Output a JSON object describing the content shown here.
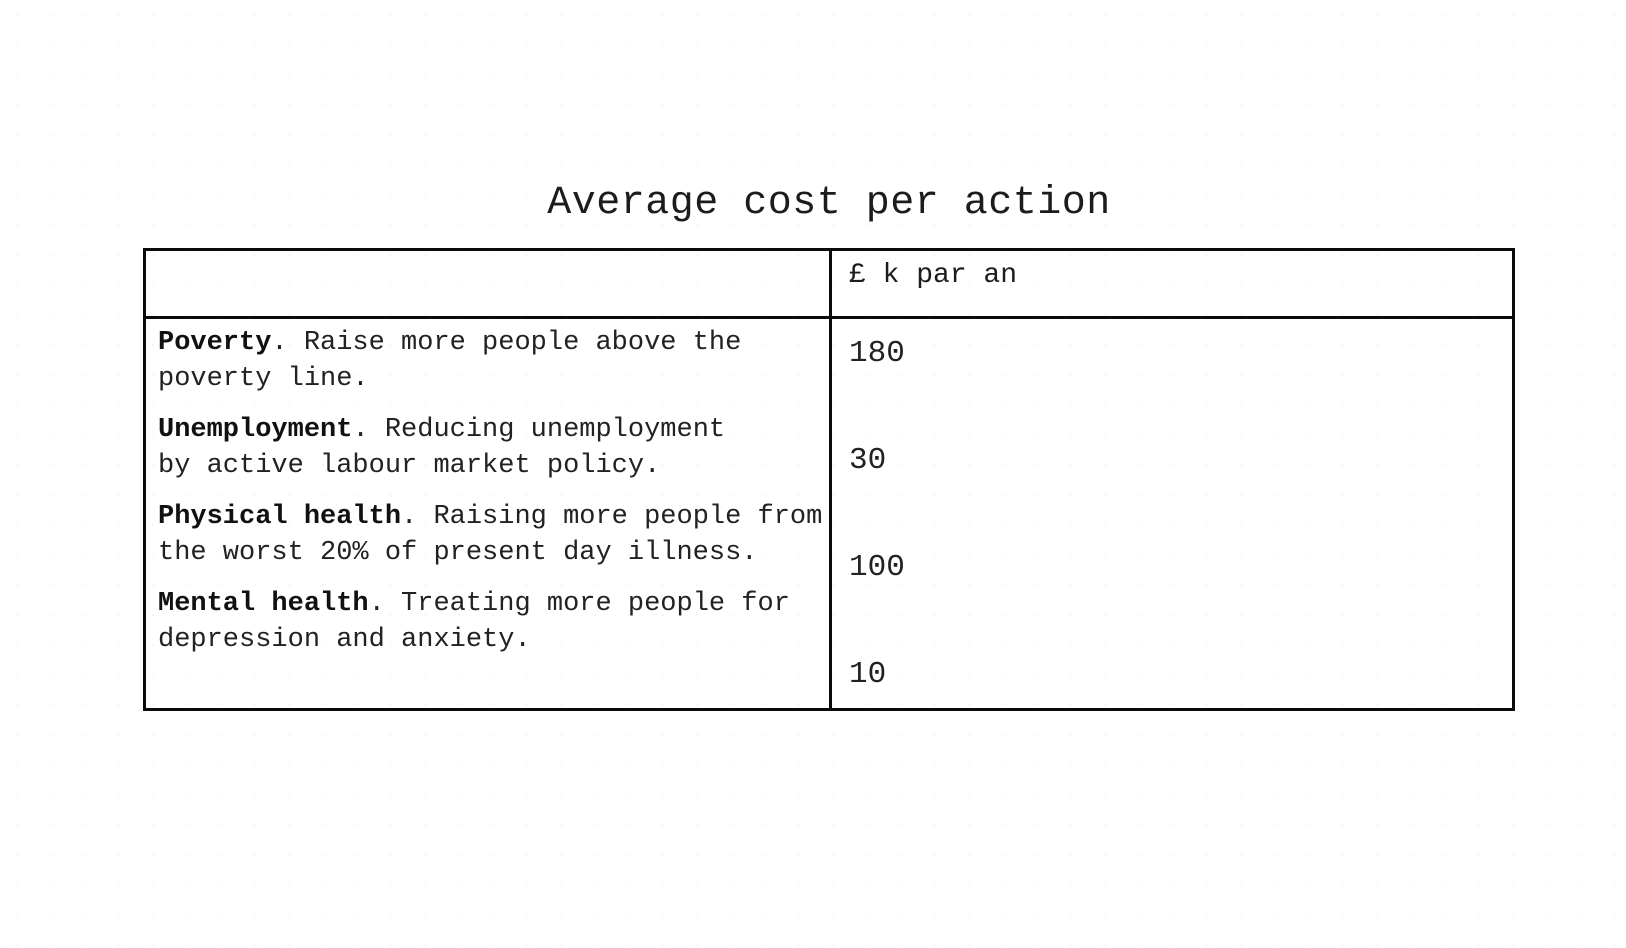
{
  "page": {
    "title": "Average cost per action"
  },
  "table": {
    "unit_header": "£ k par an",
    "rows": [
      {
        "term": "Poverty",
        "desc_line1": ". Raise more people above the",
        "desc_line2": "poverty line.",
        "value": "180"
      },
      {
        "term": "Unemployment",
        "desc_line1": ". Reducing unemployment",
        "desc_line2": "by active labour market policy.",
        "value": "30"
      },
      {
        "term": "Physical health",
        "desc_line1": ". Raising more people from",
        "desc_line2": "the worst 20% of present day illness.",
        "value": "100"
      },
      {
        "term": "Mental health",
        "desc_line1": ". Treating more people for",
        "desc_line2": "depression and anxiety.",
        "value": "10"
      }
    ]
  },
  "chart_data": {
    "type": "table",
    "title": "Average cost per action",
    "columns": [
      "",
      "£ k par an"
    ],
    "rows": [
      [
        "Poverty. Raise more people above the poverty line.",
        180
      ],
      [
        "Unemployment. Reducing unemployment by active labour market policy.",
        30
      ],
      [
        "Physical health. Raising more people from the worst 20% of present day illness.",
        100
      ],
      [
        "Mental health. Treating more people for depression and anxiety.",
        10
      ]
    ]
  }
}
